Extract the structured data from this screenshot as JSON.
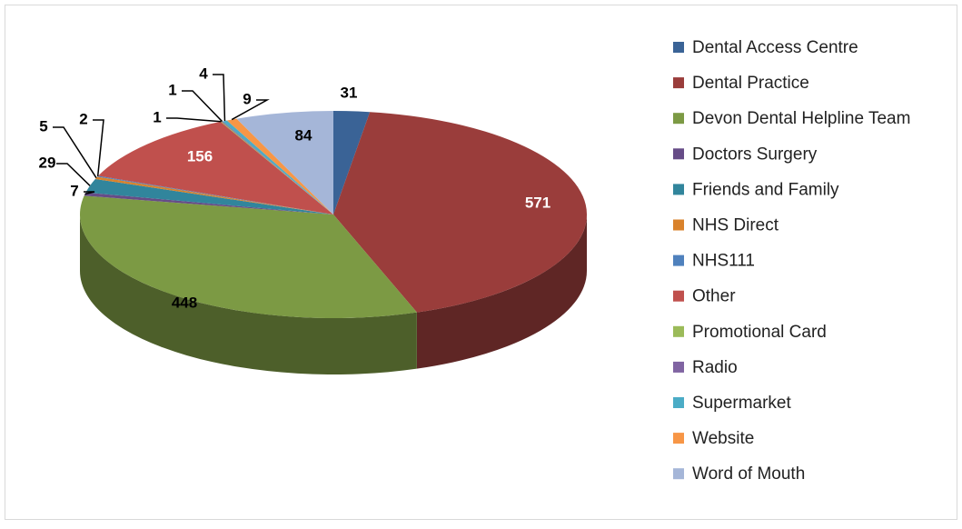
{
  "chart_data": {
    "type": "pie",
    "3d": true,
    "legend": "right",
    "categories": [
      "Dental Access Centre",
      "Dental Practice",
      "Devon Dental Helpline Team",
      "Doctors Surgery",
      "Friends and Family",
      "NHS Direct",
      "NHS111",
      "Other",
      "Promotional Card",
      "Radio",
      "Supermarket",
      "Website",
      "Word of Mouth"
    ],
    "values": [
      31,
      571,
      448,
      7,
      29,
      5,
      2,
      156,
      1,
      1,
      4,
      9,
      84
    ],
    "colors": [
      "#3A6396",
      "#9A3D3B",
      "#7C9A44",
      "#664C87",
      "#31859C",
      "#D9822B",
      "#4F81BD",
      "#C0504D",
      "#9BBB59",
      "#8064A2",
      "#4BACC6",
      "#F79646",
      "#A5B6D8"
    ]
  }
}
